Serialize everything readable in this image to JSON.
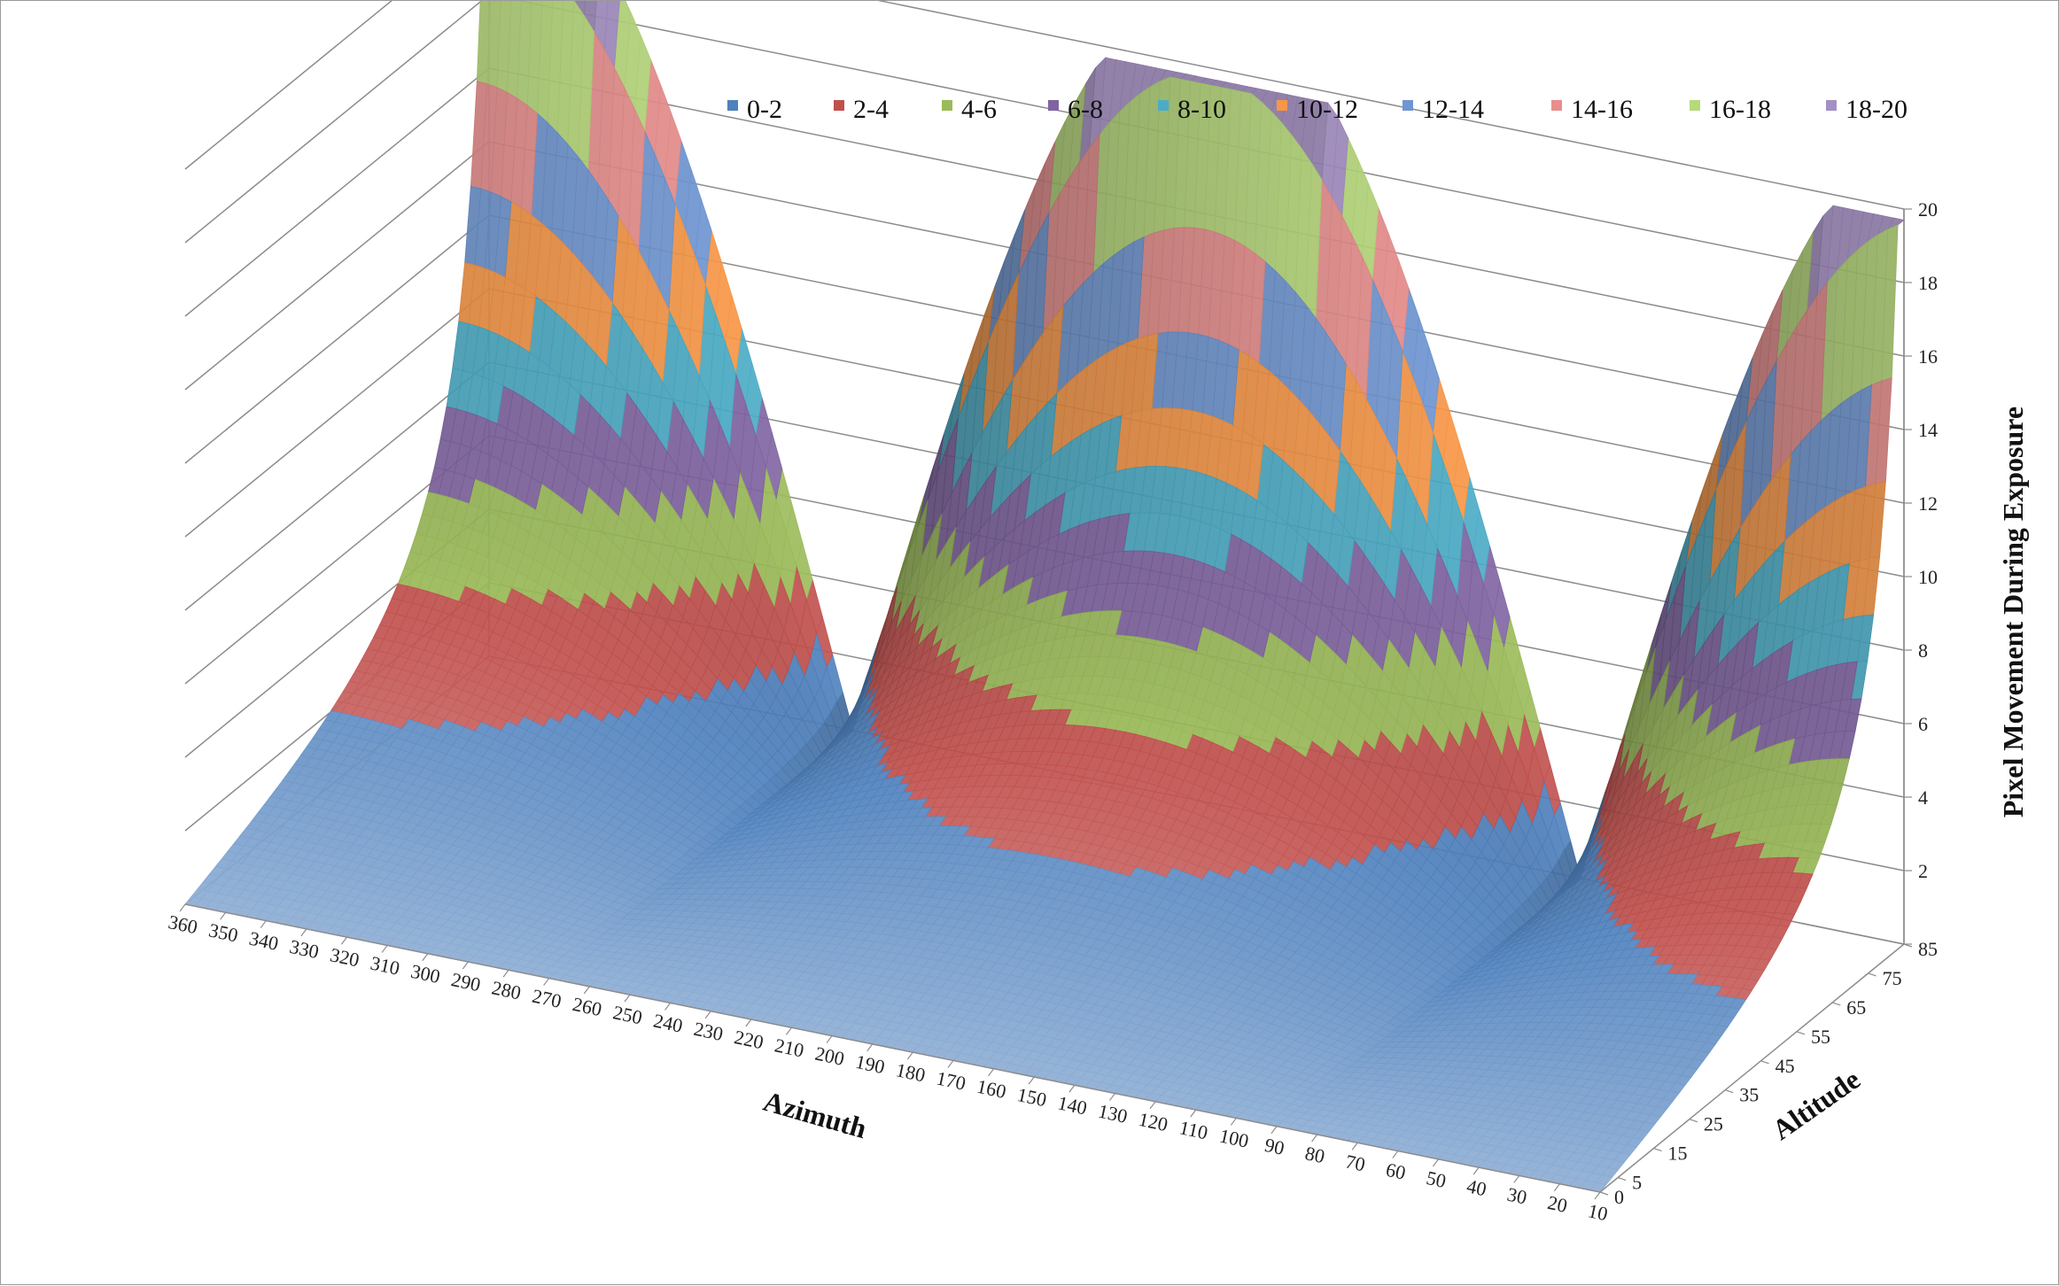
{
  "chart_data": {
    "type": "surface",
    "xlabel": "Azimuth",
    "ylabel": "Altitude",
    "zlabel": "Pixel Movement During Exposure",
    "x_ticks": [
      360,
      350,
      340,
      330,
      320,
      310,
      300,
      290,
      280,
      270,
      260,
      250,
      240,
      230,
      220,
      210,
      200,
      190,
      180,
      170,
      160,
      150,
      140,
      130,
      120,
      110,
      100,
      90,
      80,
      70,
      60,
      50,
      40,
      30,
      20,
      10
    ],
    "y_ticks": [
      0,
      5,
      15,
      25,
      35,
      45,
      55,
      65,
      75,
      85
    ],
    "z_ticks": [
      2,
      4,
      6,
      8,
      10,
      12,
      14,
      16,
      18,
      20
    ],
    "zlim": [
      0,
      20
    ],
    "legend": {
      "position": "top",
      "entries": [
        "0-2",
        "2-4",
        "4-6",
        "6-8",
        "8-10",
        "10-12",
        "12-14",
        "14-16",
        "16-18",
        "18-20"
      ]
    },
    "band_colors": [
      "#4f81bd",
      "#c0504d",
      "#9bbb59",
      "#8064a2",
      "#4bacc6",
      "#f79646",
      "#6f96d2",
      "#e88e8c",
      "#b7d97a",
      "#a58fc4"
    ],
    "peaks_azimuth": [
      360,
      180,
      0
    ],
    "peak_altitude": 85,
    "peak_value": 20,
    "valleys_azimuth": [
      270,
      90
    ]
  }
}
